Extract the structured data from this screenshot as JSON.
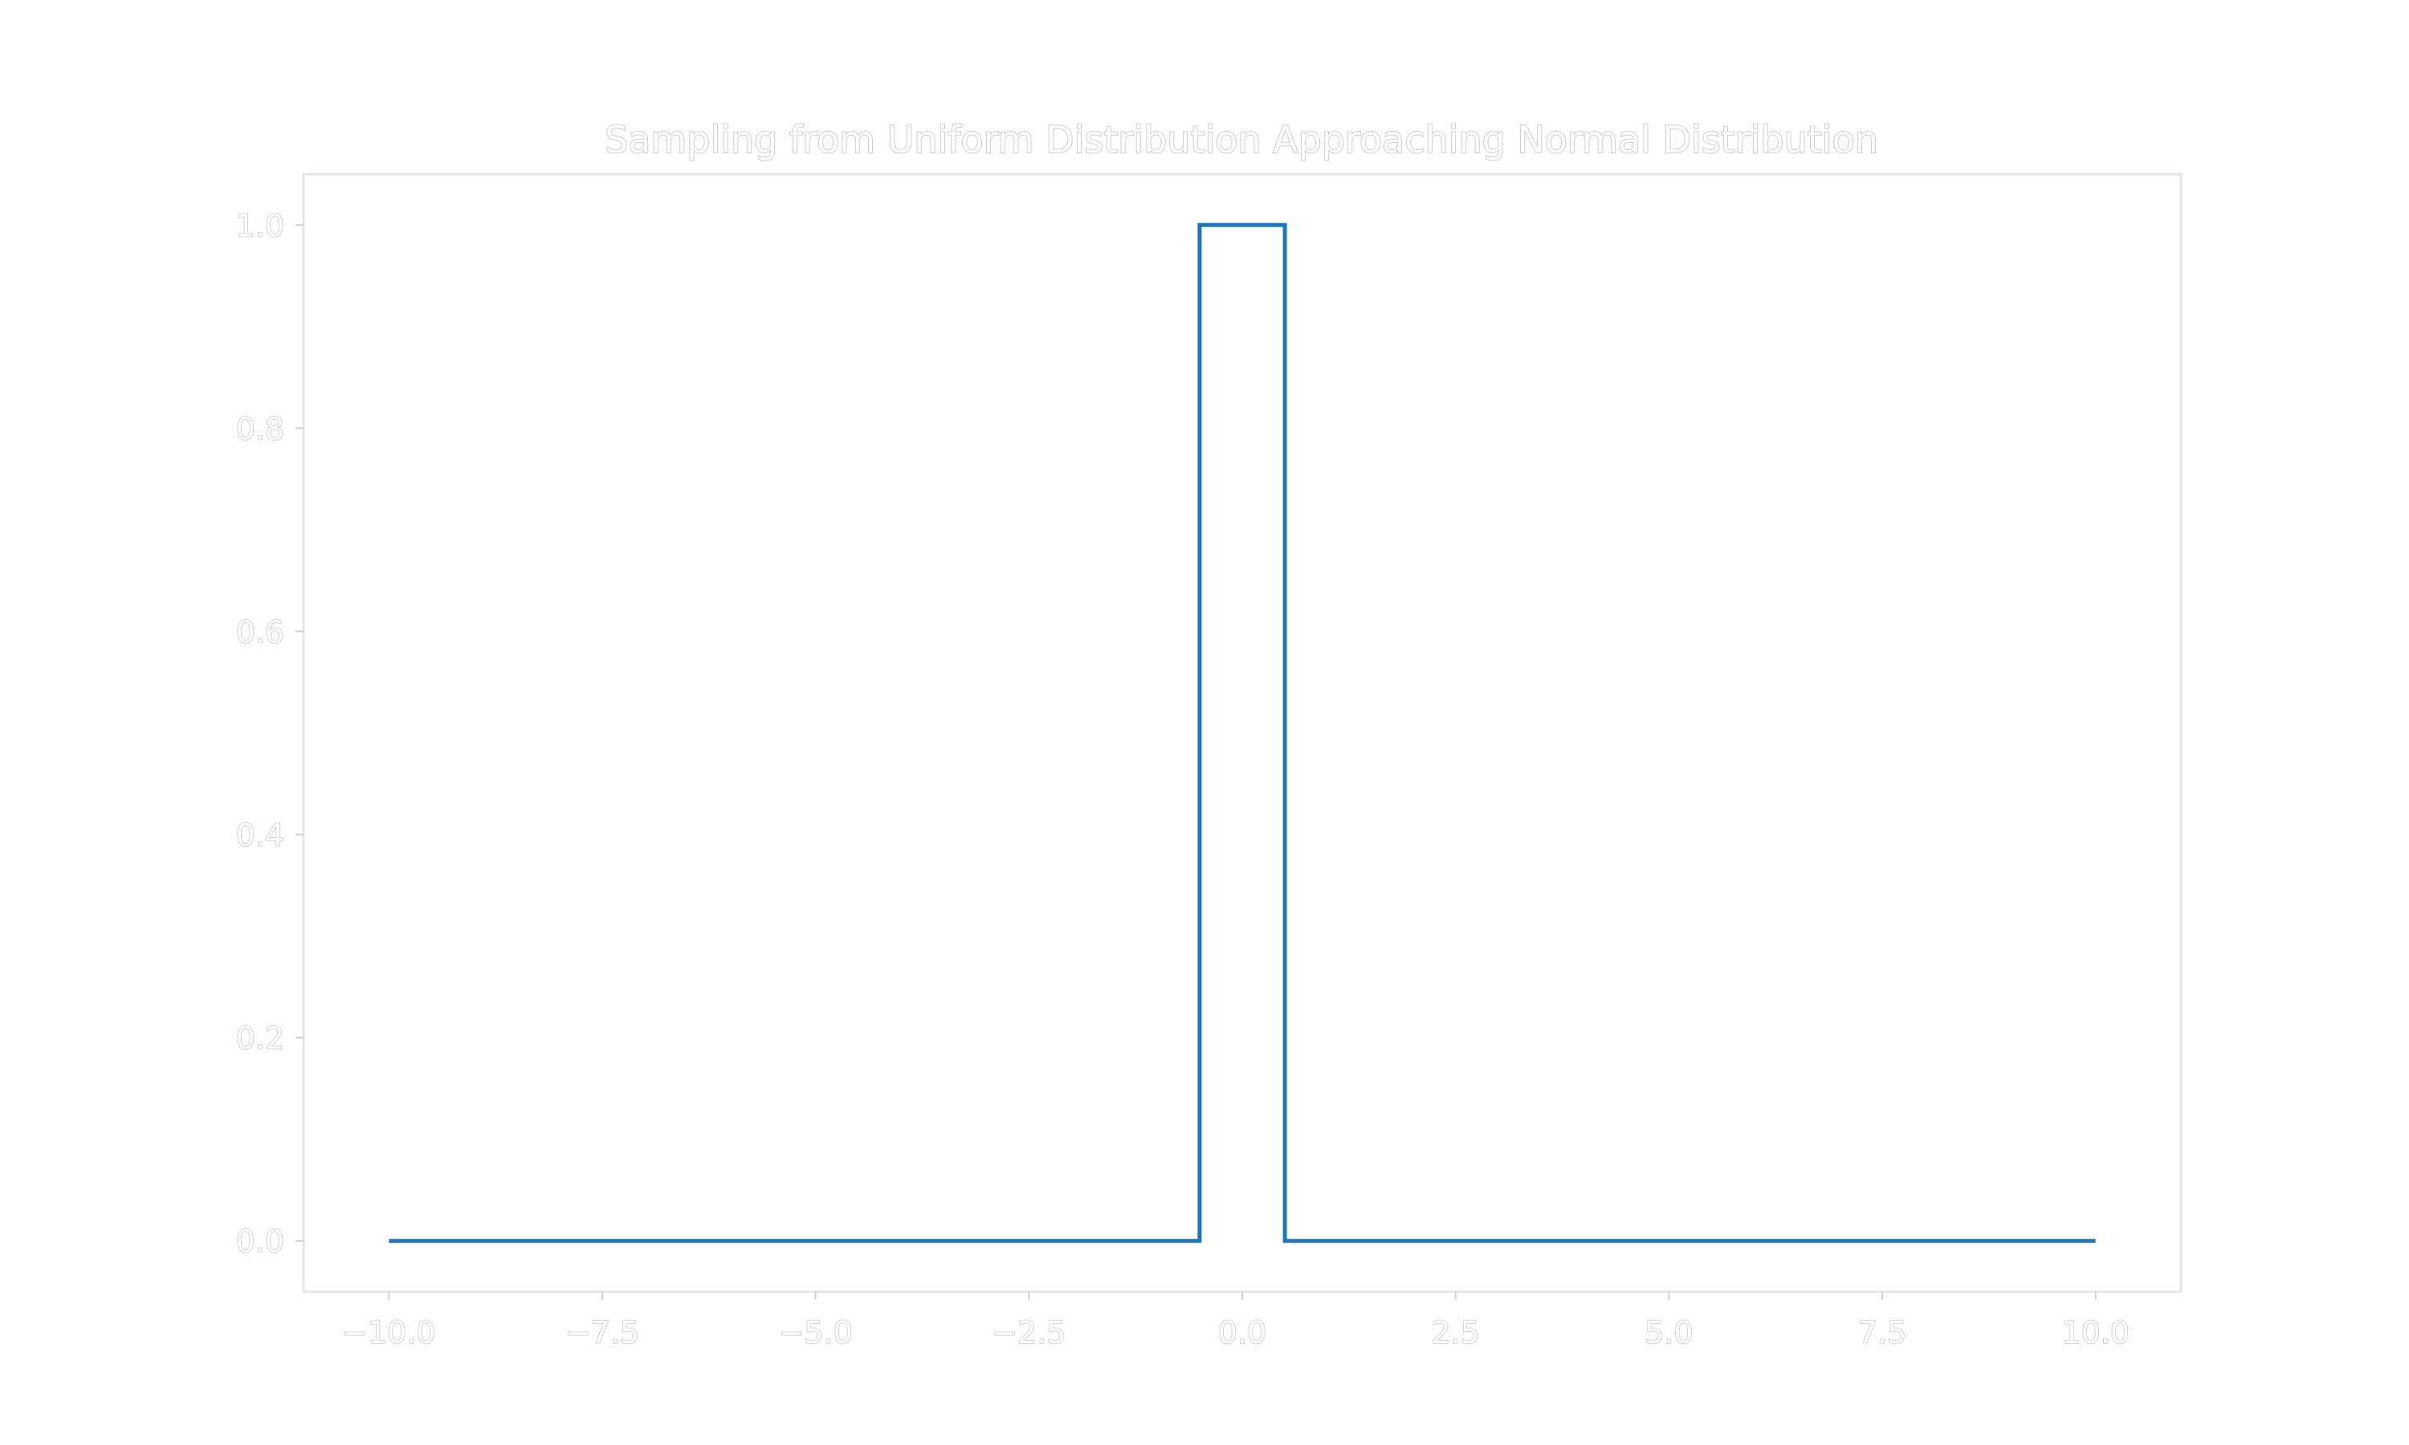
{
  "chart_data": {
    "type": "line",
    "title": "Sampling from Uniform Distribution Approaching Normal Distribution",
    "xlabel": "",
    "ylabel": "",
    "xlim": [
      -11.0,
      11.0
    ],
    "ylim": [
      -0.05,
      1.05
    ],
    "x_ticks": [
      -10.0,
      -7.5,
      -5.0,
      -2.5,
      0.0,
      2.5,
      5.0,
      7.5,
      10.0
    ],
    "x_tick_labels": [
      "−10.0",
      "−7.5",
      "−5.0",
      "−2.5",
      "0.0",
      "2.5",
      "5.0",
      "7.5",
      "10.0"
    ],
    "y_ticks": [
      0.0,
      0.2,
      0.4,
      0.6,
      0.8,
      1.0
    ],
    "y_tick_labels": [
      "0.0",
      "0.2",
      "0.4",
      "0.6",
      "0.8",
      "1.0"
    ],
    "grid": false,
    "legend": "none",
    "series": [
      {
        "color": "#1f77b4",
        "x": [
          -10.0,
          -0.5,
          -0.5,
          0.5,
          0.5,
          10.0
        ],
        "y": [
          0.0,
          0.0,
          1.0,
          1.0,
          0.0,
          0.0
        ]
      }
    ]
  }
}
